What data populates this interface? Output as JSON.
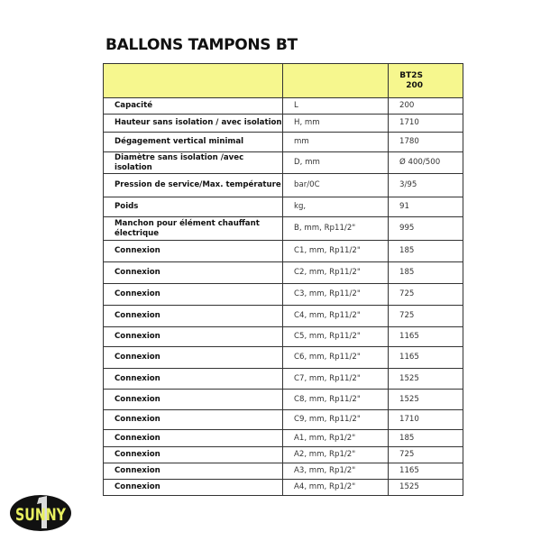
{
  "title": "BALLONS TAMPONS BT",
  "table": {
    "header": {
      "col1": "",
      "col2": "",
      "model_line1": "BT2S",
      "model_line2": "200"
    },
    "rows": [
      {
        "label": "Capacité",
        "unit": "L",
        "value": "200"
      },
      {
        "label": "Hauteur sans isolation / avec isolation",
        "unit": "H, mm",
        "value": "1710"
      },
      {
        "label": "Dégagement vertical minimal",
        "unit": "mm",
        "value": "1780"
      },
      {
        "label": "Diamètre sans isolation /avec isolation",
        "unit": "D, mm",
        "value": "Ø 400/500"
      },
      {
        "label": "Pression de service/Max. température",
        "unit": "bar/0C",
        "value": "3/95"
      },
      {
        "label": "Poids",
        "unit": "kg,",
        "value": "91"
      },
      {
        "label": "Manchon pour élément chauffant électrique",
        "unit": "B, mm, Rp11/2\"",
        "value": "995"
      },
      {
        "label": "Connexion",
        "unit": "C1, mm, Rp11/2\"",
        "value": "185"
      },
      {
        "label": "Connexion",
        "unit": "C2, mm, Rp11/2\"",
        "value": "185"
      },
      {
        "label": "Connexion",
        "unit": "C3, mm, Rp11/2\"",
        "value": "725"
      },
      {
        "label": "Connexion",
        "unit": "C4, mm, Rp11/2\"",
        "value": "725"
      },
      {
        "label": "Connexion",
        "unit": "C5, mm, Rp11/2\"",
        "value": "1165"
      },
      {
        "label": "Connexion",
        "unit": "C6, mm, Rp11/2\"",
        "value": "1165"
      },
      {
        "label": "Connexion",
        "unit": "C7, mm, Rp11/2\"",
        "value": "1525"
      },
      {
        "label": "Connexion",
        "unit": "C8, mm, Rp11/2\"",
        "value": "1525"
      },
      {
        "label": "Connexion",
        "unit": "C9, mm, Rp11/2\"",
        "value": "1710"
      },
      {
        "label": "Connexion",
        "unit": "A1, mm, Rp1/2\"",
        "value": "185"
      },
      {
        "label": "Connexion",
        "unit": "A2, mm, Rp1/2\"",
        "value": "725"
      },
      {
        "label": "Connexion",
        "unit": "A3, mm, Rp1/2\"",
        "value": "1165"
      },
      {
        "label": "Connexion",
        "unit": "A4, mm, Rp1/2\"",
        "value": "1525"
      }
    ]
  },
  "logo": {
    "text": "SUNNY",
    "numeral": "1"
  },
  "colors": {
    "header_bg": "#f6f78e",
    "logo_bg": "#111111",
    "logo_text": "#e8f060"
  }
}
